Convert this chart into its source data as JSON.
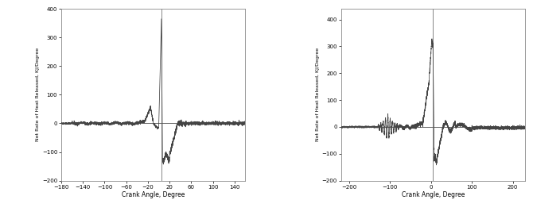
{
  "chart1": {
    "xlim": [
      -180,
      160
    ],
    "ylim": [
      -200,
      400
    ],
    "xticks": [
      -180,
      -140,
      -100,
      -60,
      -20,
      20,
      60,
      100,
      140
    ],
    "yticks": [
      -200,
      -100,
      0,
      100,
      200,
      300,
      400
    ],
    "xlabel": "Crank Angle, Degree",
    "ylabel": "Net Rate of Heat Released, KJ/Degree",
    "line_color": "#444444",
    "zero_line_color": "#666666",
    "vline_color": "#666666",
    "vline_x": 5
  },
  "chart2": {
    "xlim": [
      -220,
      230
    ],
    "ylim": [
      -200,
      440
    ],
    "xticks": [
      -200,
      -100,
      0,
      100,
      200
    ],
    "yticks": [
      -200,
      -100,
      0,
      100,
      200,
      300,
      400
    ],
    "xlabel": "Crank Angle, Degree",
    "ylabel": "Net Rate of Heat Released, KJ/Degree",
    "line_color": "#444444",
    "zero_line_color": "#666666",
    "vline_color": "#666666",
    "vline_x": 5
  },
  "bg_color": "#ffffff",
  "axes_bg": "#ffffff",
  "spine_color": "#888888"
}
